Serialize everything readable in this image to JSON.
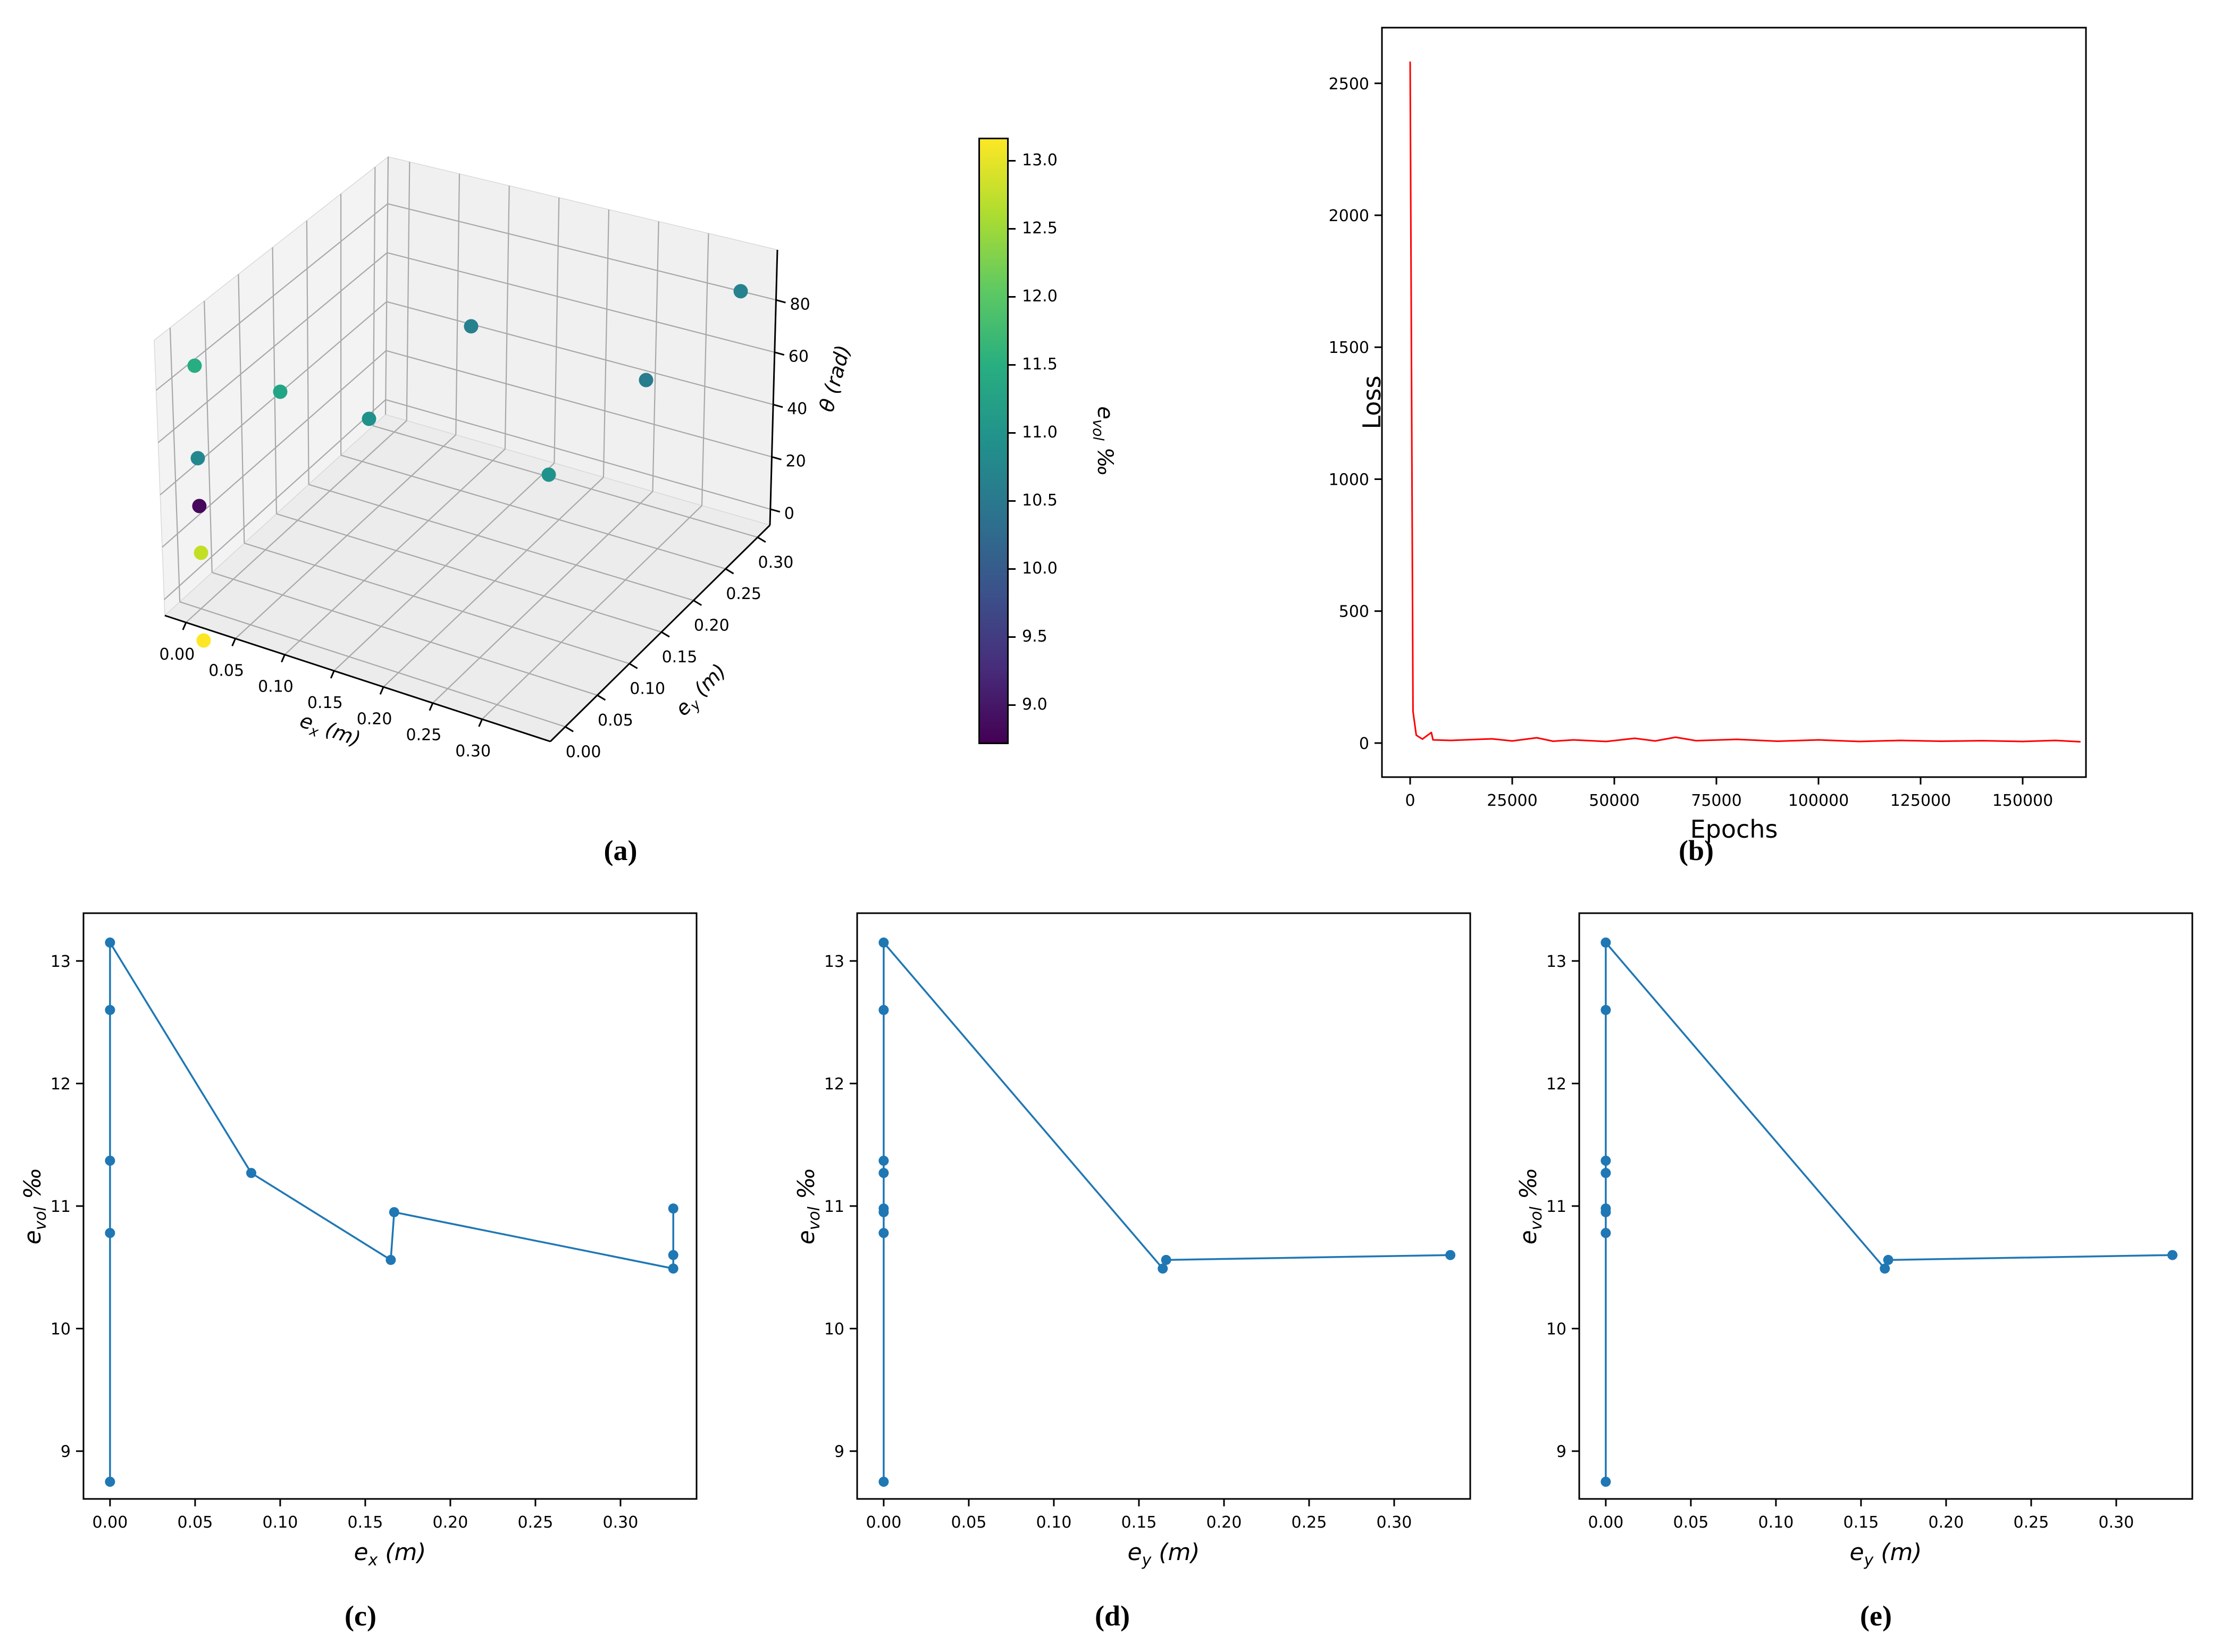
{
  "captions": {
    "a": "(a)",
    "b": "(b)",
    "c": "(c)",
    "d": "(d)",
    "e": "(e)"
  },
  "colors": {
    "series_blue": "#1f77b4",
    "series_red": "#ff0000"
  },
  "chart_data": [
    {
      "id": "a",
      "type": "scatter3d",
      "xlabel": "e_x (m)",
      "ylabel": "e_y (m)",
      "zlabel": "θ (rad)",
      "xticks": [
        "0.00",
        "0.05",
        "0.10",
        "0.15",
        "0.20",
        "0.25",
        "0.30"
      ],
      "yticks": [
        "0.00",
        "0.05",
        "0.10",
        "0.15",
        "0.20",
        "0.25",
        "0.30"
      ],
      "zticks": [
        "0",
        "20",
        "40",
        "60",
        "80"
      ],
      "points": [
        {
          "ex": 0.0,
          "ey": 0.0,
          "theta": 0,
          "evol": 13.15,
          "color": "#fde725",
          "proj": [
            0.2199,
            0.7468
          ]
        },
        {
          "ex": 0.0,
          "ey": 0.0,
          "theta": 20,
          "evol": 12.6,
          "color": "#c2df23",
          "proj": [
            0.2167,
            0.641
          ]
        },
        {
          "ex": 0.0,
          "ey": 0.0,
          "theta": 30,
          "evol": 8.75,
          "color": "#46085c",
          "proj": [
            0.2147,
            0.5846
          ]
        },
        {
          "ex": 0.0,
          "ey": 0.0,
          "theta": 45,
          "evol": 10.78,
          "color": "#23888e",
          "proj": [
            0.2128,
            0.5269
          ]
        },
        {
          "ex": 0.0,
          "ey": 0.0,
          "theta": 65,
          "evol": 11.37,
          "color": "#27ad81",
          "proj": [
            0.209,
            0.4154
          ]
        },
        {
          "ex": 0.083,
          "ey": 0.0,
          "theta": 60,
          "evol": 11.27,
          "color": "#21a585",
          "proj": [
            0.3122,
            0.4468
          ]
        },
        {
          "ex": 0.165,
          "ey": 0.0,
          "theta": 55,
          "evol": 10.95,
          "color": "#21918c",
          "proj": [
            0.4192,
            0.4795
          ]
        },
        {
          "ex": 0.165,
          "ey": 0.165,
          "theta": 78,
          "evol": 10.56,
          "color": "#27808e",
          "proj": [
            0.5423,
            0.3679
          ]
        },
        {
          "ex": 0.33,
          "ey": 0.33,
          "theta": 88,
          "evol": 10.6,
          "color": "#26828e",
          "proj": [
            0.8673,
            0.3256
          ]
        },
        {
          "ex": 0.33,
          "ey": 0.165,
          "theta": 65,
          "evol": 10.49,
          "color": "#297b8e",
          "proj": [
            0.7532,
            0.4327
          ]
        },
        {
          "ex": 0.33,
          "ey": 0.0,
          "theta": 35,
          "evol": 10.98,
          "color": "#20928c",
          "proj": [
            0.6359,
            0.5468
          ]
        }
      ],
      "colorbar": {
        "label": "e_vol ‰",
        "ticks": [
          "13.0",
          "12.5",
          "12.0",
          "11.5",
          "11.0",
          "10.5",
          "10.0",
          "9.5",
          "9.0"
        ],
        "vmin": 8.7,
        "vmax": 13.17,
        "colormap": "viridis",
        "stops": [
          "#440154",
          "#472d7b",
          "#3b528b",
          "#2c728e",
          "#21918c",
          "#28ae80",
          "#5ec962",
          "#addc30",
          "#fde725"
        ]
      }
    },
    {
      "id": "b",
      "type": "line",
      "xlabel": "Epochs",
      "ylabel": "Loss",
      "color": "#ff0000",
      "markers": false,
      "xlim": [
        -6900,
        165500
      ],
      "ylim": [
        -129,
        2711
      ],
      "xticks": [
        "0",
        "25000",
        "50000",
        "75000",
        "100000",
        "125000",
        "150000"
      ],
      "yticks": [
        "0",
        "500",
        "1000",
        "1500",
        "2000",
        "2500"
      ],
      "points": [
        [
          0,
          2580
        ],
        [
          700,
          120
        ],
        [
          1500,
          30
        ],
        [
          3000,
          15
        ],
        [
          5200,
          40
        ],
        [
          5600,
          12
        ],
        [
          10000,
          10
        ],
        [
          20000,
          16
        ],
        [
          25000,
          8
        ],
        [
          31000,
          20
        ],
        [
          35000,
          7
        ],
        [
          40000,
          12
        ],
        [
          48000,
          6
        ],
        [
          55000,
          18
        ],
        [
          60000,
          8
        ],
        [
          65000,
          22
        ],
        [
          70000,
          9
        ],
        [
          80000,
          14
        ],
        [
          90000,
          7
        ],
        [
          100000,
          12
        ],
        [
          110000,
          6
        ],
        [
          120000,
          10
        ],
        [
          130000,
          7
        ],
        [
          140000,
          9
        ],
        [
          150000,
          6
        ],
        [
          158000,
          10
        ],
        [
          164000,
          5
        ]
      ]
    },
    {
      "id": "c",
      "type": "line",
      "xlabel": "e_x (m)",
      "ylabel": "e_vol ‰",
      "color": "#1f77b4",
      "markers": true,
      "xlim": [
        -0.0156,
        0.3447
      ],
      "ylim": [
        8.61,
        13.39
      ],
      "xticks": [
        "0.00",
        "0.05",
        "0.10",
        "0.15",
        "0.20",
        "0.25",
        "0.30"
      ],
      "yticks": [
        "9",
        "10",
        "11",
        "12",
        "13"
      ],
      "points": [
        [
          0,
          8.75
        ],
        [
          0,
          10.78
        ],
        [
          0,
          11.37
        ],
        [
          0,
          12.6
        ],
        [
          0,
          13.15
        ],
        [
          0.083,
          11.27
        ],
        [
          0.165,
          10.56
        ],
        [
          0.167,
          10.95
        ],
        [
          0.331,
          10.49
        ],
        [
          0.331,
          10.6
        ],
        [
          0.331,
          10.98
        ]
      ]
    },
    {
      "id": "d",
      "type": "line",
      "xlabel": "e_y (m)",
      "ylabel": "e_vol ‰",
      "color": "#1f77b4",
      "markers": true,
      "xlim": [
        -0.0156,
        0.3447
      ],
      "ylim": [
        8.61,
        13.39
      ],
      "xticks": [
        "0.00",
        "0.05",
        "0.10",
        "0.15",
        "0.20",
        "0.25",
        "0.30"
      ],
      "yticks": [
        "9",
        "10",
        "11",
        "12",
        "13"
      ],
      "points": [
        [
          0,
          8.75
        ],
        [
          0,
          10.78
        ],
        [
          0,
          10.95
        ],
        [
          0,
          10.98
        ],
        [
          0,
          11.27
        ],
        [
          0,
          11.37
        ],
        [
          0,
          12.6
        ],
        [
          0,
          13.15
        ],
        [
          0.164,
          10.49
        ],
        [
          0.166,
          10.56
        ],
        [
          0.333,
          10.6
        ]
      ]
    },
    {
      "id": "e",
      "type": "line",
      "xlabel": "e_y (m)",
      "ylabel": "e_vol ‰",
      "color": "#1f77b4",
      "markers": true,
      "xlim": [
        -0.0156,
        0.3447
      ],
      "ylim": [
        8.61,
        13.39
      ],
      "xticks": [
        "0.00",
        "0.05",
        "0.10",
        "0.15",
        "0.20",
        "0.25",
        "0.30"
      ],
      "yticks": [
        "9",
        "10",
        "11",
        "12",
        "13"
      ],
      "points": [
        [
          0,
          8.75
        ],
        [
          0,
          10.78
        ],
        [
          0,
          10.95
        ],
        [
          0,
          10.98
        ],
        [
          0,
          11.27
        ],
        [
          0,
          11.37
        ],
        [
          0,
          12.6
        ],
        [
          0,
          13.15
        ],
        [
          0.164,
          10.49
        ],
        [
          0.166,
          10.56
        ],
        [
          0.333,
          10.6
        ]
      ]
    }
  ]
}
